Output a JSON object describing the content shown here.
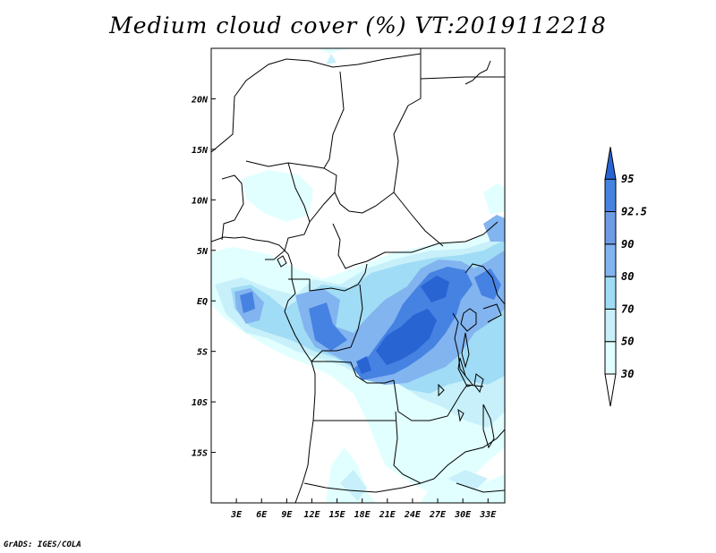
{
  "title": "Medium cloud cover (%) VT:2019112218",
  "credit": "GrADS: IGES/COLA",
  "map": {
    "lon_range": [
      0,
      35
    ],
    "lat_range": [
      -20,
      25
    ],
    "x_ticks": [
      {
        "lon": 3,
        "label": "3E"
      },
      {
        "lon": 6,
        "label": "6E"
      },
      {
        "lon": 9,
        "label": "9E"
      },
      {
        "lon": 12,
        "label": "12E"
      },
      {
        "lon": 15,
        "label": "15E"
      },
      {
        "lon": 18,
        "label": "18E"
      },
      {
        "lon": 21,
        "label": "21E"
      },
      {
        "lon": 24,
        "label": "24E"
      },
      {
        "lon": 27,
        "label": "27E"
      },
      {
        "lon": 30,
        "label": "30E"
      },
      {
        "lon": 33,
        "label": "33E"
      }
    ],
    "y_ticks": [
      {
        "lat": 20,
        "label": "20N"
      },
      {
        "lat": 15,
        "label": "15N"
      },
      {
        "lat": 10,
        "label": "10N"
      },
      {
        "lat": 5,
        "label": "5N"
      },
      {
        "lat": 0,
        "label": "EQ"
      },
      {
        "lat": -5,
        "label": "5S"
      },
      {
        "lat": -10,
        "label": "10S"
      },
      {
        "lat": -15,
        "label": "15S"
      }
    ]
  },
  "colorbar": {
    "levels": [
      "30",
      "50",
      "70",
      "80",
      "90",
      "92.5",
      "95"
    ],
    "colors": [
      "#e1ffff",
      "#c8f0fa",
      "#a0dcf5",
      "#82b4f0",
      "#6e9be6",
      "#4682e1",
      "#2864d2"
    ]
  },
  "cloud_palette": {
    "light": "#e1ffff",
    "pale": "#c8f0fa",
    "mid": "#a0dcf5",
    "blue": "#82b4f0",
    "strong": "#4682e1",
    "deep": "#2864d2"
  }
}
